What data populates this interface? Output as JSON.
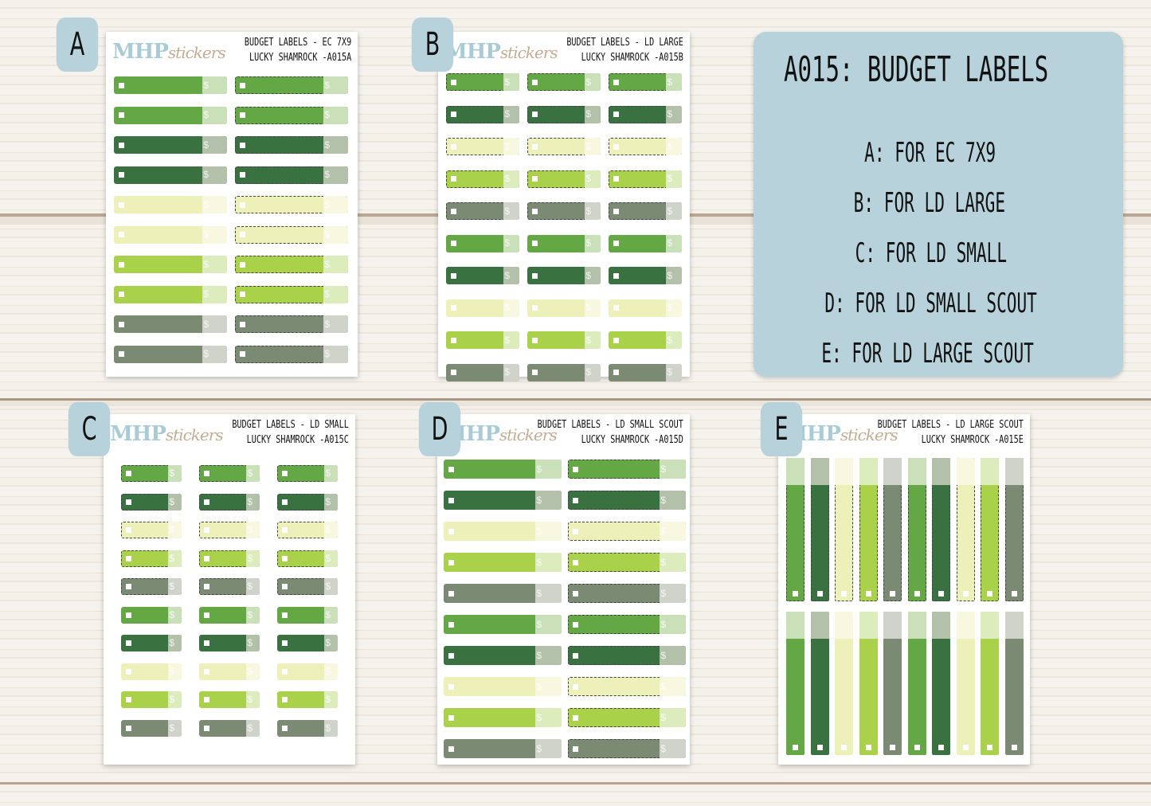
{
  "colors": {
    "g": [
      "#63a844",
      "#c9e0b9"
    ],
    "d": [
      "#3a7140",
      "#b4c1aa"
    ],
    "p": [
      "#edf0b8",
      "#f7f8df"
    ],
    "l": [
      "#a9d14a",
      "#dcecbc"
    ],
    "x": [
      "#7b8a72",
      "#cfd3c9"
    ]
  },
  "logo": {
    "main": "MHP",
    "script": "stickers"
  },
  "sheets": [
    {
      "letter": "A",
      "line1": "BUDGET LABELS - EC 7X9",
      "line2": "LUCKY SHAMROCK -A015A",
      "rows": [
        "g",
        "g",
        "d",
        "d",
        "p",
        "p",
        "l",
        "l",
        "x",
        "x"
      ],
      "cols": 2,
      "dashed": [
        false,
        true
      ]
    },
    {
      "letter": "B",
      "line1": "BUDGET LABELS - LD LARGE",
      "line2": "LUCKY SHAMROCK -A015B",
      "rows": [
        "g",
        "d",
        "p",
        "l",
        "x",
        "g",
        "d",
        "p",
        "l",
        "x"
      ],
      "cols": 3,
      "dashed_rows": 5
    },
    {
      "letter": "C",
      "line1": "BUDGET LABELS - LD SMALL",
      "line2": "LUCKY SHAMROCK -A015C",
      "rows": [
        "g",
        "d",
        "p",
        "l",
        "x",
        "g",
        "d",
        "p",
        "l",
        "x"
      ],
      "cols": 3,
      "dashed_rows": 5
    },
    {
      "letter": "D",
      "line1": "BUDGET LABELS - LD SMALL SCOUT",
      "line2": "LUCKY SHAMROCK -A015D",
      "rows": [
        "g",
        "d",
        "p",
        "l",
        "x",
        "g",
        "d",
        "p",
        "l",
        "x"
      ],
      "cols": 2,
      "dashed": [
        false,
        true
      ]
    },
    {
      "letter": "E",
      "line1": "BUDGET LABELS - LD LARGE SCOUT",
      "line2": "LUCKY SHAMROCK -A015E",
      "strips": [
        "g",
        "d",
        "p",
        "l",
        "x",
        "g",
        "d",
        "p",
        "l",
        "x"
      ]
    }
  ],
  "info": {
    "title": "A015: BUDGET LABELS",
    "items": [
      "A: FOR EC 7X9",
      "B: FOR LD LARGE",
      "C: FOR LD SMALL",
      "D: FOR LD SMALL SCOUT",
      "E: FOR LD LARGE SCOUT"
    ]
  },
  "dollar": "$"
}
